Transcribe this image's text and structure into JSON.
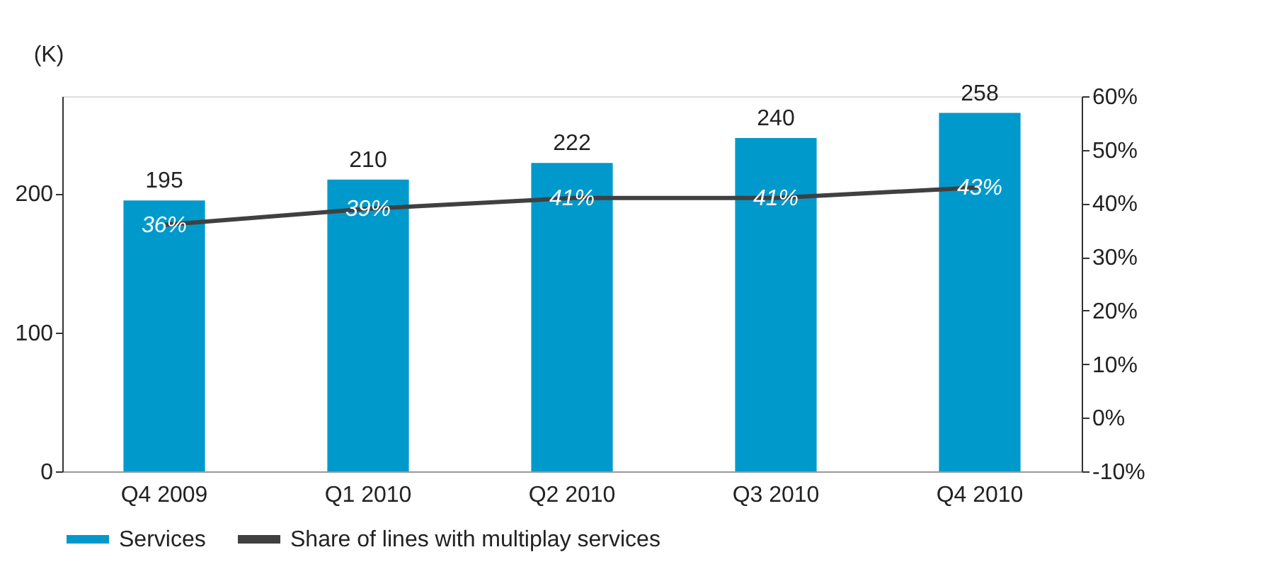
{
  "chart_data": {
    "type": "bar",
    "ylabel": "(K)",
    "categories": [
      "Q4 2009",
      "Q1 2010",
      "Q2 2010",
      "Q3 2010",
      "Q4 2010"
    ],
    "series": [
      {
        "name": "Services",
        "color": "#0099cc",
        "values": [
          195,
          210,
          222,
          240,
          258
        ],
        "value_labels": [
          "195",
          "210",
          "222",
          "240",
          "258"
        ]
      },
      {
        "name": "Share of lines with multiplay services",
        "type": "line",
        "axis": "y2",
        "color": "#404040",
        "values": [
          36,
          39,
          41,
          41,
          43
        ],
        "value_labels": [
          "36%",
          "39%",
          "41%",
          "41%",
          "43%"
        ]
      }
    ],
    "ylim": [
      0,
      270
    ],
    "yticks": [
      0,
      100,
      200
    ],
    "y2lim": [
      -10,
      60
    ],
    "y2ticks": [
      {
        "value": -10,
        "label": "-10%"
      },
      {
        "value": 0,
        "label": "0%"
      },
      {
        "value": 10,
        "label": "10%"
      },
      {
        "value": 20,
        "label": "20%"
      },
      {
        "value": 30,
        "label": "30%"
      },
      {
        "value": 40,
        "label": "40%"
      },
      {
        "value": 50,
        "label": "50%"
      },
      {
        "value": 60,
        "label": "60%"
      }
    ],
    "grid": false,
    "legend": "bottom",
    "marker": "none",
    "line_style": "solid"
  }
}
